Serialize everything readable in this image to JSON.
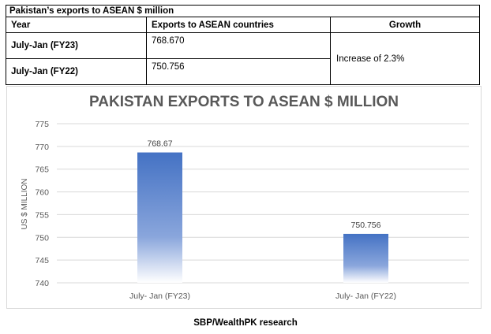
{
  "table": {
    "caption": "Pakistan’s exports to ASEAN $ million",
    "headers": [
      "Year",
      "Exports to ASEAN countries",
      "Growth"
    ],
    "rows": [
      {
        "year": "July-Jan (FY23)",
        "value": "768.670"
      },
      {
        "year": "July-Jan (FY22)",
        "value": "750.756"
      }
    ],
    "growth": "Increase of 2.3%"
  },
  "chart_data": {
    "type": "bar",
    "title": "PAKISTAN EXPORTS TO ASEAN $ MILLION",
    "ylabel": "US $ MILLION",
    "xlabel": "",
    "categories": [
      "July- Jan (FY23)",
      "July- Jan (FY22)"
    ],
    "values": [
      768.67,
      750.756
    ],
    "data_labels": [
      "768.67",
      "750.756"
    ],
    "ylim": [
      740,
      775
    ],
    "yticks": [
      740,
      745,
      750,
      755,
      760,
      765,
      770,
      775
    ],
    "grid": true,
    "bar_color": "#4472c4"
  },
  "source": "SBP/WealthPK research"
}
